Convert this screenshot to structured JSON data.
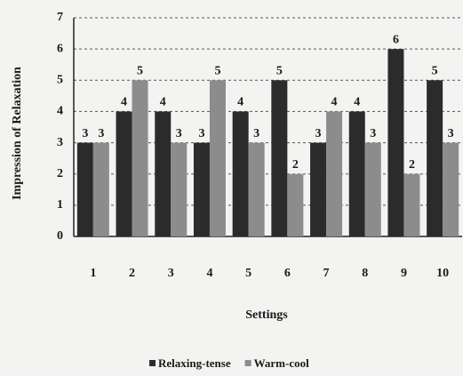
{
  "chart_data": {
    "type": "bar",
    "y_label": "Impression of Relaxation",
    "x_label": "Settings",
    "categories": [
      "1",
      "2",
      "3",
      "4",
      "5",
      "6",
      "7",
      "8",
      "9",
      "10"
    ],
    "series": [
      {
        "name": "Relaxing-tense",
        "color": "#2b2b2b",
        "values": [
          3,
          4,
          4,
          3,
          4,
          5,
          3,
          4,
          6,
          5
        ]
      },
      {
        "name": "Warm-cool",
        "color": "#8c8c8c",
        "values": [
          3,
          5,
          3,
          5,
          3,
          2,
          4,
          3,
          2,
          3
        ]
      }
    ],
    "ylim": [
      0,
      7
    ],
    "yticks": [
      0,
      1,
      2,
      3,
      4,
      5,
      6,
      7
    ],
    "grid": true,
    "legend": "bottom"
  }
}
